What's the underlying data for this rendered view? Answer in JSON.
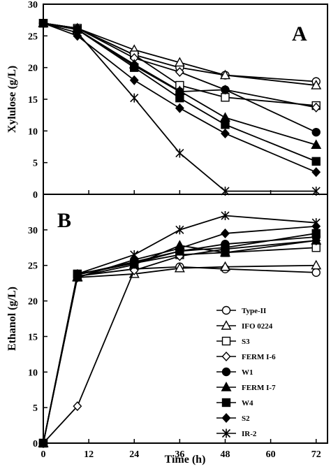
{
  "chart_data": [
    {
      "panel": "A",
      "type": "line",
      "ylabel": "Xylulose (g/L)",
      "ylim": [
        0,
        30
      ],
      "yticks": [
        0,
        5,
        10,
        15,
        20,
        25,
        30
      ],
      "xlim": [
        0,
        75
      ],
      "x": [
        0,
        9,
        24,
        36,
        48,
        72
      ],
      "series": [
        {
          "name": "Type-II",
          "marker": "circle-open",
          "values": [
            27,
            26.2,
            22,
            20,
            18.8,
            17.8
          ]
        },
        {
          "name": "IFO 0224",
          "marker": "triangle-open",
          "values": [
            27,
            26.2,
            22.8,
            20.8,
            18.8,
            17.2
          ]
        },
        {
          "name": "S3",
          "marker": "square-open",
          "values": [
            27,
            26.2,
            22,
            17.2,
            15.3,
            14
          ]
        },
        {
          "name": "FERM I-6",
          "marker": "diamond-open",
          "values": [
            27,
            26.2,
            21.5,
            19.3,
            16.5,
            13.7
          ]
        },
        {
          "name": "W1",
          "marker": "circle-filled",
          "values": [
            27,
            26,
            20.3,
            16.2,
            16.5,
            9.8
          ]
        },
        {
          "name": "FERM I-7",
          "marker": "triangle-filled",
          "values": [
            27,
            26,
            20.5,
            16.3,
            12.1,
            7.8
          ]
        },
        {
          "name": "W4",
          "marker": "square-filled",
          "values": [
            27,
            26,
            20,
            15.2,
            11,
            5.2
          ]
        },
        {
          "name": "S2",
          "marker": "diamond-filled",
          "values": [
            27,
            25,
            18,
            13.6,
            9.6,
            3.5
          ]
        },
        {
          "name": "IR-2",
          "marker": "x",
          "values": [
            27,
            25.5,
            15.2,
            6.5,
            0.5,
            0.5
          ]
        }
      ]
    },
    {
      "panel": "B",
      "type": "line",
      "ylabel": "Ethanol (g/L)",
      "ylim": [
        0,
        35
      ],
      "yticks": [
        0,
        5,
        10,
        15,
        20,
        25,
        30
      ],
      "xlabel": "Time (h)",
      "xlim": [
        0,
        75
      ],
      "xticks": [
        0,
        12,
        24,
        36,
        48,
        60,
        72
      ],
      "x": [
        0,
        9,
        24,
        36,
        48,
        72
      ],
      "legend_position": "lower-right",
      "series": [
        {
          "name": "Type-II",
          "marker": "circle-open",
          "values": [
            0,
            23.5,
            24.5,
            24.8,
            24.5,
            24
          ]
        },
        {
          "name": "IFO 0224",
          "marker": "triangle-open",
          "values": [
            0,
            23.3,
            23.8,
            24.6,
            24.8,
            25
          ]
        },
        {
          "name": "S3",
          "marker": "square-open",
          "values": [
            0,
            23.8,
            25.3,
            26.5,
            26.8,
            27.5
          ]
        },
        {
          "name": "FERM I-6",
          "marker": "diamond-open",
          "values": [
            0,
            5.2,
            24.3,
            26.3,
            27.3,
            28.5
          ]
        },
        {
          "name": "W1",
          "marker": "circle-filled",
          "values": [
            0,
            23.7,
            25.5,
            27,
            28,
            29
          ]
        },
        {
          "name": "FERM I-7",
          "marker": "triangle-filled",
          "values": [
            0,
            23.4,
            25.1,
            27.8,
            26.8,
            28.5
          ]
        },
        {
          "name": "W4",
          "marker": "square-filled",
          "values": [
            0,
            23.7,
            25.3,
            27,
            27.5,
            29.5
          ]
        },
        {
          "name": "S2",
          "marker": "diamond-filled",
          "values": [
            0,
            23.3,
            25.8,
            27.4,
            29.5,
            30.5
          ]
        },
        {
          "name": "IR-2",
          "marker": "x",
          "values": [
            0,
            23.8,
            26.5,
            30,
            32,
            31
          ]
        }
      ]
    }
  ]
}
